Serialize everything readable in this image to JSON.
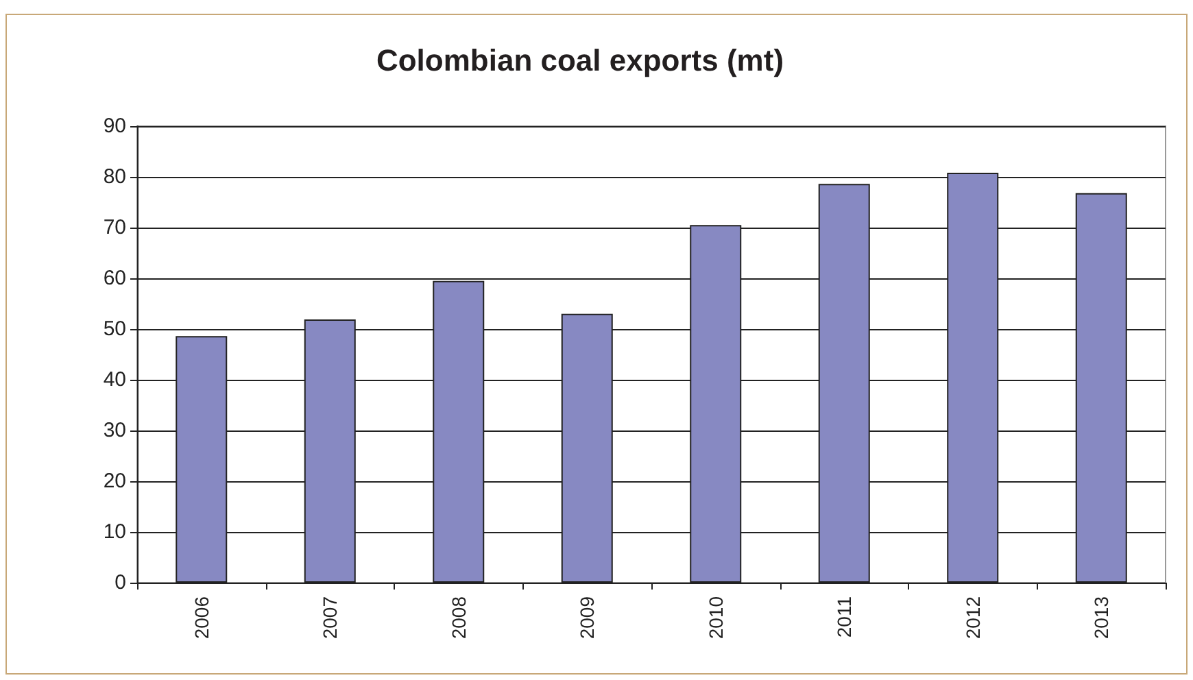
{
  "chart_data": {
    "type": "bar",
    "title": "Colombian coal exports (mt)",
    "categories": [
      "2006",
      "2007",
      "2008",
      "2009",
      "2010",
      "2011",
      "2012",
      "2013"
    ],
    "values": [
      48.6,
      51.9,
      59.5,
      53,
      70.5,
      78.6,
      80.8,
      76.8
    ],
    "color": "#8789c2",
    "ylim": [
      0,
      90
    ],
    "yticks": [
      0,
      10,
      20,
      30,
      40,
      50,
      60,
      70,
      80,
      90
    ],
    "grid": "y"
  }
}
